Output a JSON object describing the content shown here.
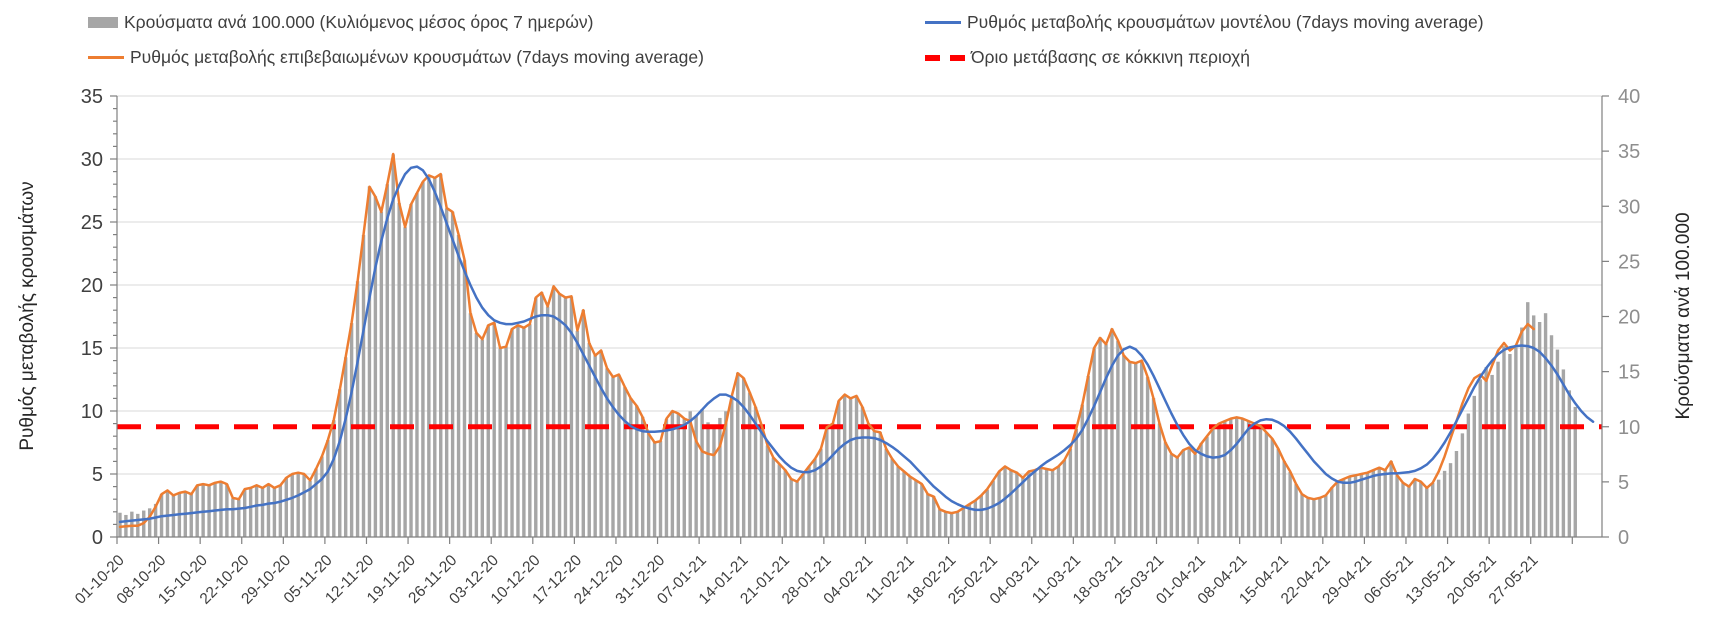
{
  "colors": {
    "bars": "#A6A6A6",
    "model_line": "#4472C4",
    "confirmed_line": "#ED7D31",
    "threshold": "#FF0000",
    "gridline": "#D9D9D9",
    "axis_line": "#808080",
    "left_tick_text": "#404040",
    "right_tick_text": "#8E8E8E",
    "x_tick_text": "#3F3F3F"
  },
  "legend": {
    "items": [
      {
        "label": "Κρούσματα ανά 100.000 (Κυλιόμενος μέσος όρος 7 ημερών)",
        "marker": "bar-swatch",
        "color": "#A6A6A6"
      },
      {
        "label": "Ρυθμός μεταβολής κρουσμάτων μοντέλου (7days moving average)",
        "marker": "line",
        "color": "#4472C4"
      },
      {
        "label": "Ρυθμός μεταβολής επιβεβαιωμένων κρουσμάτων (7days moving average)",
        "marker": "line",
        "color": "#ED7D31"
      },
      {
        "label": "Όριο μετάβασης σε κόκκινη περιοχή",
        "marker": "dashed-line",
        "color": "#FF0000"
      }
    ]
  },
  "chart_data": {
    "type": "bar",
    "subtype": "combo-bar-line",
    "grid": true,
    "legend_position": "top",
    "left_axis": {
      "title": "Ρυθμός μεταβολής κρουσμάτων",
      "min": 0,
      "max": 35,
      "tick_step": 5,
      "minor_tick_step": 1
    },
    "right_axis": {
      "title": "Κρούσματα ανά 100.000",
      "min": 0,
      "max": 40,
      "tick_step": 5
    },
    "x_days_total": 250,
    "x_tick_interval_days": 7,
    "x_tick_labels": [
      "01-10-20",
      "08-10-20",
      "15-10-20",
      "22-10-20",
      "29-10-20",
      "05-11-20",
      "12-11-20",
      "19-11-20",
      "26-11-20",
      "03-12-20",
      "10-12-20",
      "17-12-20",
      "24-12-20",
      "31-12-20",
      "07-01-21",
      "14-01-21",
      "21-01-21",
      "28-01-21",
      "04-02-21",
      "11-02-21",
      "18-02-21",
      "25-02-21",
      "04-03-21",
      "11-03-21",
      "18-03-21",
      "25-03-21",
      "01-04-21",
      "08-04-21",
      "15-04-21",
      "22-04-21",
      "29-04-21",
      "06-05-21",
      "13-05-21",
      "20-05-21",
      "27-05-21"
    ],
    "threshold": {
      "label": "Όριο μετάβασης σε κόκκινη περιοχή",
      "value_left_axis": 8.75,
      "value_right_axis": 10,
      "color": "#FF0000"
    },
    "series": [
      {
        "name": "Κρούσματα ανά 100.000 (Κυλιόμενος μέσος όρος 7 ημερών)",
        "type": "bar",
        "axis": "right",
        "color": "#A6A6A6",
        "start_date": "01-10-20",
        "interval_days": 1,
        "values": [
          2.2,
          2.0,
          2.3,
          2.1,
          2.4,
          2.6,
          3.0,
          3.9,
          4.2,
          3.8,
          4.0,
          4.1,
          3.9,
          4.7,
          4.8,
          4.7,
          4.9,
          5.0,
          4.8,
          3.5,
          3.4,
          4.3,
          4.5,
          4.7,
          4.5,
          4.8,
          4.5,
          4.7,
          5.4,
          5.7,
          5.8,
          5.7,
          5.1,
          6.2,
          7.3,
          8.8,
          10.6,
          13.4,
          16.3,
          19.4,
          23.2,
          27.4,
          31.8,
          30.9,
          29.5,
          32.0,
          34.7,
          30.3,
          28.1,
          30.2,
          31.2,
          32.2,
          32.8,
          32.6,
          32.9,
          29.8,
          29.5,
          27.4,
          25.1,
          20.3,
          18.5,
          17.9,
          19.2,
          19.4,
          17.1,
          17.3,
          18.9,
          19.2,
          19.0,
          19.3,
          21.7,
          22.2,
          20.9,
          22.7,
          22.1,
          21.7,
          21.8,
          18.7,
          20.6,
          17.6,
          16.5,
          16.9,
          15.3,
          14.5,
          14.7,
          13.6,
          12.6,
          11.9,
          10.9,
          9.4,
          8.6,
          8.7,
          10.7,
          11.4,
          11.2,
          10.7,
          11.4,
          11.0,
          11.6,
          10.4,
          10.0,
          10.8,
          11.4,
          12.8,
          14.9,
          14.4,
          13.1,
          11.8,
          10.2,
          8.3,
          7.2,
          6.6,
          6.1,
          5.3,
          5.0,
          5.7,
          6.4,
          7.1,
          8.0,
          9.9,
          10.3,
          12.3,
          12.9,
          12.6,
          12.8,
          11.8,
          10.3,
          9.6,
          9.5,
          8.0,
          7.1,
          6.4,
          5.9,
          5.5,
          5.1,
          4.8,
          3.9,
          3.7,
          2.5,
          2.3,
          2.2,
          2.3,
          2.6,
          3.0,
          3.3,
          3.8,
          4.3,
          5.1,
          5.9,
          6.4,
          6.1,
          5.8,
          5.4,
          5.9,
          6.1,
          6.3,
          6.2,
          6.1,
          6.4,
          7.0,
          8.0,
          9.8,
          12.0,
          14.6,
          17.1,
          18.1,
          17.5,
          18.9,
          17.8,
          16.5,
          15.9,
          15.8,
          16.0,
          14.5,
          12.6,
          10.3,
          8.6,
          7.5,
          7.2,
          7.9,
          8.1,
          7.5,
          8.5,
          9.1,
          9.8,
          10.3,
          10.5,
          10.7,
          10.9,
          10.7,
          10.5,
          10.3,
          10.1,
          9.5,
          8.9,
          8.0,
          6.9,
          5.9,
          4.8,
          3.9,
          3.5,
          3.4,
          3.5,
          3.8,
          4.5,
          5.0,
          5.3,
          5.5,
          5.6,
          5.7,
          5.8,
          6.1,
          6.3,
          6.1,
          6.9,
          5.6,
          4.9,
          4.6,
          5.3,
          5.0,
          4.5,
          4.9,
          5.2,
          6.0,
          6.7,
          7.8,
          9.4,
          11.2,
          12.8,
          14.3,
          15.4,
          14.7,
          15.9,
          17.3,
          16.6,
          17.2,
          19.0,
          21.3,
          20.1,
          19.5,
          20.3,
          18.3,
          17.0,
          15.2,
          13.3,
          11.8
        ]
      },
      {
        "name": "Ρυθμός μεταβολής επιβεβαιωμένων κρουσμάτων (7days moving average)",
        "type": "line",
        "axis": "left",
        "color": "#ED7D31",
        "start_date": "01-10-20",
        "interval_days": 1,
        "values": [
          0.8,
          0.85,
          0.9,
          0.9,
          1.1,
          1.6,
          2.4,
          3.4,
          3.7,
          3.3,
          3.5,
          3.6,
          3.4,
          4.1,
          4.2,
          4.1,
          4.3,
          4.4,
          4.2,
          3.1,
          3.0,
          3.8,
          3.9,
          4.1,
          3.9,
          4.2,
          3.9,
          4.1,
          4.7,
          5.0,
          5.1,
          5.0,
          4.5,
          5.4,
          6.4,
          7.7,
          9.3,
          11.7,
          14.3,
          17.0,
          20.3,
          24.0,
          27.8,
          27.0,
          25.8,
          28.0,
          30.4,
          26.5,
          24.6,
          26.4,
          27.3,
          28.2,
          28.7,
          28.5,
          28.8,
          26.1,
          25.8,
          24.0,
          22.0,
          17.8,
          16.2,
          15.7,
          16.8,
          17.0,
          15.0,
          15.1,
          16.5,
          16.8,
          16.6,
          16.9,
          19.0,
          19.4,
          18.3,
          19.9,
          19.3,
          19.0,
          19.1,
          16.4,
          18.0,
          15.4,
          14.4,
          14.8,
          13.4,
          12.7,
          12.9,
          11.9,
          11.0,
          10.4,
          9.5,
          8.2,
          7.5,
          7.6,
          9.4,
          10.0,
          9.8,
          9.4,
          9.2,
          7.6,
          6.8,
          6.6,
          6.5,
          7.2,
          9.0,
          11.2,
          13.0,
          12.6,
          11.5,
          10.3,
          8.9,
          7.3,
          6.3,
          5.8,
          5.3,
          4.6,
          4.4,
          5.0,
          5.6,
          6.2,
          7.0,
          8.7,
          9.0,
          10.8,
          11.3,
          11.0,
          11.2,
          10.3,
          9.0,
          8.4,
          8.3,
          7.0,
          6.2,
          5.6,
          5.2,
          4.8,
          4.5,
          4.2,
          3.4,
          3.2,
          2.2,
          2.0,
          1.9,
          2.0,
          2.3,
          2.6,
          2.9,
          3.3,
          3.8,
          4.5,
          5.2,
          5.6,
          5.3,
          5.1,
          4.7,
          5.2,
          5.3,
          5.5,
          5.4,
          5.3,
          5.6,
          6.1,
          7.0,
          8.6,
          10.5,
          12.8,
          15.0,
          15.8,
          15.3,
          16.5,
          15.6,
          14.4,
          13.9,
          13.8,
          14.0,
          12.7,
          11.0,
          9.0,
          7.5,
          6.6,
          6.3,
          6.9,
          7.1,
          6.6,
          7.4,
          8.0,
          8.6,
          9.0,
          9.2,
          9.4,
          9.5,
          9.4,
          9.2,
          9.0,
          8.8,
          8.3,
          7.8,
          7.0,
          6.0,
          5.2,
          4.2,
          3.4,
          3.1,
          3.0,
          3.1,
          3.3,
          3.9,
          4.4,
          4.6,
          4.8,
          4.9,
          5.0,
          5.1,
          5.3,
          5.5,
          5.3,
          6.0,
          4.9,
          4.3,
          4.0,
          4.6,
          4.4,
          3.9,
          4.3,
          5.2,
          6.4,
          7.8,
          9.2,
          10.6,
          11.8,
          12.6,
          12.9,
          12.4,
          13.6,
          14.8,
          15.4,
          14.8,
          15.2,
          16.3,
          16.9,
          16.5
        ]
      },
      {
        "name": "Ρυθμός μεταβολής κρουσμάτων μοντέλου (7days moving average)",
        "type": "line",
        "axis": "left",
        "color": "#4472C4",
        "start_date": "01-10-20",
        "interval_days": 1,
        "values": [
          1.2,
          1.25,
          1.3,
          1.35,
          1.4,
          1.45,
          1.55,
          1.65,
          1.7,
          1.75,
          1.8,
          1.85,
          1.9,
          1.95,
          2.0,
          2.05,
          2.1,
          2.15,
          2.2,
          2.2,
          2.25,
          2.3,
          2.4,
          2.5,
          2.55,
          2.65,
          2.7,
          2.8,
          2.95,
          3.1,
          3.3,
          3.55,
          3.8,
          4.2,
          4.6,
          5.2,
          6.2,
          7.6,
          9.4,
          11.5,
          13.9,
          16.4,
          19.0,
          21.4,
          23.5,
          25.3,
          26.8,
          27.9,
          28.8,
          29.3,
          29.4,
          29.1,
          28.4,
          27.4,
          26.2,
          24.9,
          23.6,
          22.3,
          21.1,
          20.0,
          19.0,
          18.2,
          17.6,
          17.2,
          17.0,
          16.9,
          16.9,
          17.0,
          17.1,
          17.3,
          17.5,
          17.6,
          17.6,
          17.5,
          17.2,
          16.8,
          16.2,
          15.4,
          14.5,
          13.6,
          12.7,
          11.8,
          11.0,
          10.3,
          9.7,
          9.2,
          8.8,
          8.55,
          8.4,
          8.35,
          8.35,
          8.4,
          8.45,
          8.55,
          8.7,
          8.9,
          9.2,
          9.6,
          10.1,
          10.6,
          11.0,
          11.3,
          11.3,
          11.1,
          10.8,
          10.3,
          9.7,
          9.0,
          8.3,
          7.6,
          7.0,
          6.4,
          5.9,
          5.5,
          5.25,
          5.15,
          5.15,
          5.3,
          5.6,
          6.0,
          6.5,
          7.0,
          7.4,
          7.7,
          7.85,
          7.9,
          7.9,
          7.85,
          7.7,
          7.45,
          7.15,
          6.8,
          6.4,
          6.0,
          5.5,
          5.0,
          4.5,
          4.0,
          3.6,
          3.2,
          2.85,
          2.6,
          2.4,
          2.25,
          2.15,
          2.15,
          2.25,
          2.45,
          2.7,
          3.05,
          3.45,
          3.9,
          4.35,
          4.8,
          5.2,
          5.6,
          5.95,
          6.25,
          6.55,
          6.9,
          7.3,
          7.8,
          8.5,
          9.4,
          10.4,
          11.5,
          12.6,
          13.6,
          14.4,
          14.9,
          15.1,
          14.9,
          14.4,
          13.7,
          12.8,
          11.8,
          10.8,
          9.8,
          8.9,
          8.1,
          7.4,
          6.9,
          6.6,
          6.4,
          6.3,
          6.35,
          6.5,
          6.9,
          7.4,
          8.0,
          8.6,
          9.0,
          9.25,
          9.35,
          9.3,
          9.1,
          8.8,
          8.35,
          7.8,
          7.2,
          6.6,
          6.0,
          5.5,
          5.0,
          4.65,
          4.4,
          4.3,
          4.3,
          4.4,
          4.55,
          4.7,
          4.85,
          4.95,
          5.0,
          5.05,
          5.05,
          5.1,
          5.15,
          5.25,
          5.45,
          5.75,
          6.2,
          6.8,
          7.5,
          8.3,
          9.2,
          10.1,
          11.0,
          11.9,
          12.7,
          13.4,
          14.0,
          14.5,
          14.85,
          15.05,
          15.15,
          15.2,
          15.15,
          15.0,
          14.7,
          14.2,
          13.6,
          12.9,
          12.1,
          11.3,
          10.6,
          10.0,
          9.5,
          9.15
        ]
      }
    ]
  }
}
